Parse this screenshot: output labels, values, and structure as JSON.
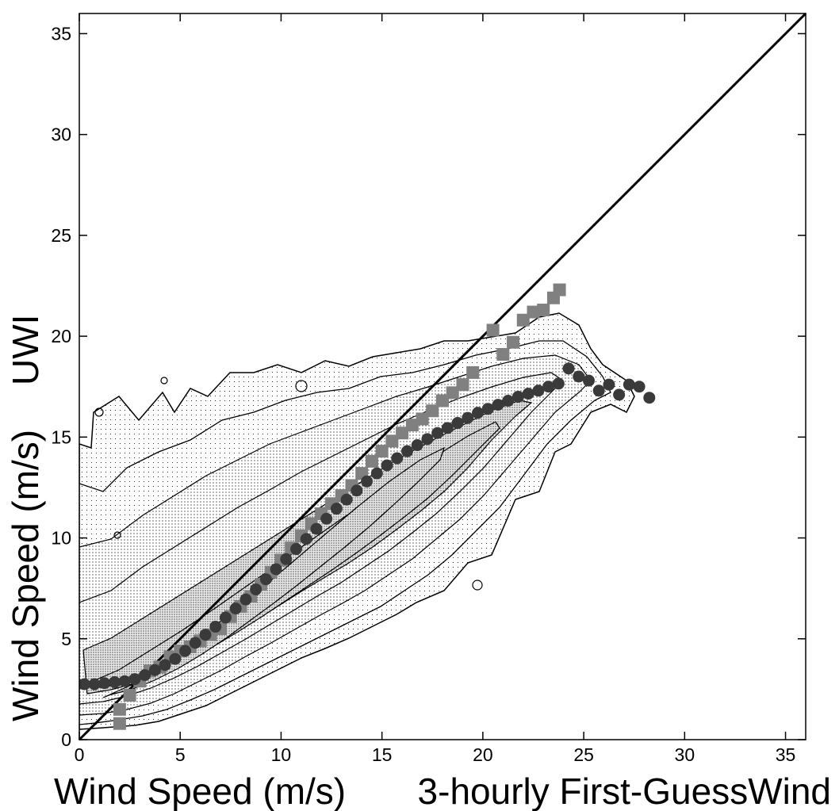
{
  "chart_data": {
    "type": "scatter",
    "title": "",
    "xlabel": "Wind Speed (m/s)",
    "xlabel_right": "3-hourly First-GuessWind",
    "ylabel": "Wind Speed (m/s)",
    "ylabel_top": "UWI",
    "xlim": [
      0,
      36
    ],
    "ylim": [
      0,
      36
    ],
    "xticks": [
      0,
      5,
      10,
      15,
      20,
      25,
      30,
      35
    ],
    "yticks": [
      0,
      5,
      10,
      15,
      20,
      25,
      30,
      35
    ],
    "grid": false,
    "legend": "none",
    "reference_line": {
      "from": [
        0,
        0
      ],
      "to": [
        36,
        36
      ]
    },
    "series": [
      {
        "marker": "circle",
        "color": "#3a3a3a",
        "points": [
          [
            0.25,
            2.75
          ],
          [
            0.75,
            2.75
          ],
          [
            1.25,
            2.8
          ],
          [
            1.75,
            2.85
          ],
          [
            2.25,
            2.9
          ],
          [
            2.75,
            3.0
          ],
          [
            3.25,
            3.2
          ],
          [
            3.75,
            3.45
          ],
          [
            4.25,
            3.7
          ],
          [
            4.75,
            4.0
          ],
          [
            5.25,
            4.4
          ],
          [
            5.75,
            4.8
          ],
          [
            6.25,
            5.2
          ],
          [
            6.75,
            5.6
          ],
          [
            7.25,
            6.05
          ],
          [
            7.75,
            6.5
          ],
          [
            8.25,
            6.95
          ],
          [
            8.75,
            7.45
          ],
          [
            9.25,
            7.95
          ],
          [
            9.75,
            8.45
          ],
          [
            10.25,
            8.95
          ],
          [
            10.75,
            9.45
          ],
          [
            11.25,
            9.95
          ],
          [
            11.75,
            10.45
          ],
          [
            12.25,
            10.95
          ],
          [
            12.75,
            11.45
          ],
          [
            13.25,
            11.9
          ],
          [
            13.75,
            12.35
          ],
          [
            14.25,
            12.8
          ],
          [
            14.75,
            13.2
          ],
          [
            15.25,
            13.6
          ],
          [
            15.75,
            13.95
          ],
          [
            16.25,
            14.3
          ],
          [
            16.75,
            14.6
          ],
          [
            17.25,
            14.9
          ],
          [
            17.75,
            15.2
          ],
          [
            18.25,
            15.45
          ],
          [
            18.75,
            15.7
          ],
          [
            19.25,
            15.95
          ],
          [
            19.75,
            16.2
          ],
          [
            20.25,
            16.4
          ],
          [
            20.75,
            16.6
          ],
          [
            21.25,
            16.8
          ],
          [
            21.75,
            17.0
          ],
          [
            22.25,
            17.15
          ],
          [
            22.75,
            17.3
          ],
          [
            23.25,
            17.5
          ],
          [
            23.75,
            17.65
          ],
          [
            24.25,
            18.4
          ],
          [
            24.75,
            18.0
          ],
          [
            25.25,
            17.8
          ],
          [
            25.75,
            17.3
          ],
          [
            26.25,
            17.6
          ],
          [
            26.75,
            17.1
          ],
          [
            27.25,
            17.6
          ],
          [
            27.75,
            17.5
          ],
          [
            28.25,
            16.95
          ]
        ]
      },
      {
        "marker": "square",
        "color": "#808080",
        "points": [
          [
            2.0,
            0.8
          ],
          [
            2.0,
            1.5
          ],
          [
            2.5,
            2.2
          ],
          [
            3.0,
            2.9
          ],
          [
            3.5,
            3.4
          ],
          [
            4.0,
            3.6
          ],
          [
            4.5,
            4.1
          ],
          [
            5.0,
            4.4
          ],
          [
            5.5,
            4.6
          ],
          [
            6.0,
            4.9
          ],
          [
            6.5,
            5.2
          ],
          [
            7.0,
            5.5
          ],
          [
            7.5,
            6.1
          ],
          [
            8.0,
            6.6
          ],
          [
            8.5,
            7.1
          ],
          [
            9.0,
            7.7
          ],
          [
            9.5,
            8.3
          ],
          [
            10.0,
            8.9
          ],
          [
            10.5,
            9.5
          ],
          [
            11.0,
            10.1
          ],
          [
            11.5,
            10.7
          ],
          [
            12.0,
            11.2
          ],
          [
            12.5,
            11.7
          ],
          [
            13.0,
            12.1
          ],
          [
            13.5,
            12.6
          ],
          [
            14.0,
            13.2
          ],
          [
            14.5,
            13.8
          ],
          [
            15.0,
            14.3
          ],
          [
            15.5,
            14.8
          ],
          [
            16.0,
            15.2
          ],
          [
            16.5,
            15.6
          ],
          [
            17.0,
            15.9
          ],
          [
            17.5,
            16.3
          ],
          [
            18.0,
            16.8
          ],
          [
            18.5,
            17.2
          ],
          [
            19.0,
            17.6
          ],
          [
            19.5,
            18.2
          ],
          [
            20.5,
            20.3
          ],
          [
            21.0,
            19.1
          ],
          [
            21.5,
            19.7
          ],
          [
            22.0,
            20.8
          ],
          [
            22.5,
            21.2
          ],
          [
            23.0,
            21.3
          ],
          [
            23.5,
            21.9
          ],
          [
            23.8,
            22.3
          ]
        ]
      }
    ]
  }
}
